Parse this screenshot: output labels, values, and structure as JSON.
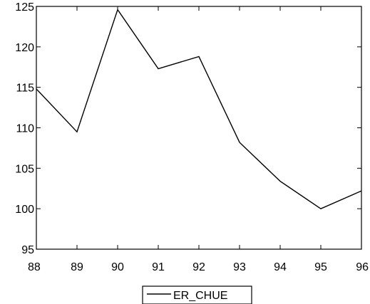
{
  "chart_data": {
    "type": "line",
    "x": [
      "88",
      "89",
      "90",
      "91",
      "92",
      "93",
      "94",
      "95",
      "96"
    ],
    "y_ticks": [
      "95",
      "100",
      "105",
      "110",
      "115",
      "120",
      "125"
    ],
    "series": [
      {
        "name": "ER_CHUE",
        "color": "#000000",
        "values": [
          114.8,
          109.5,
          124.6,
          117.3,
          118.8,
          108.2,
          103.4,
          100.0,
          102.2
        ]
      }
    ],
    "ylim": [
      95,
      125
    ],
    "grid": false,
    "legend": "bottom-center"
  }
}
